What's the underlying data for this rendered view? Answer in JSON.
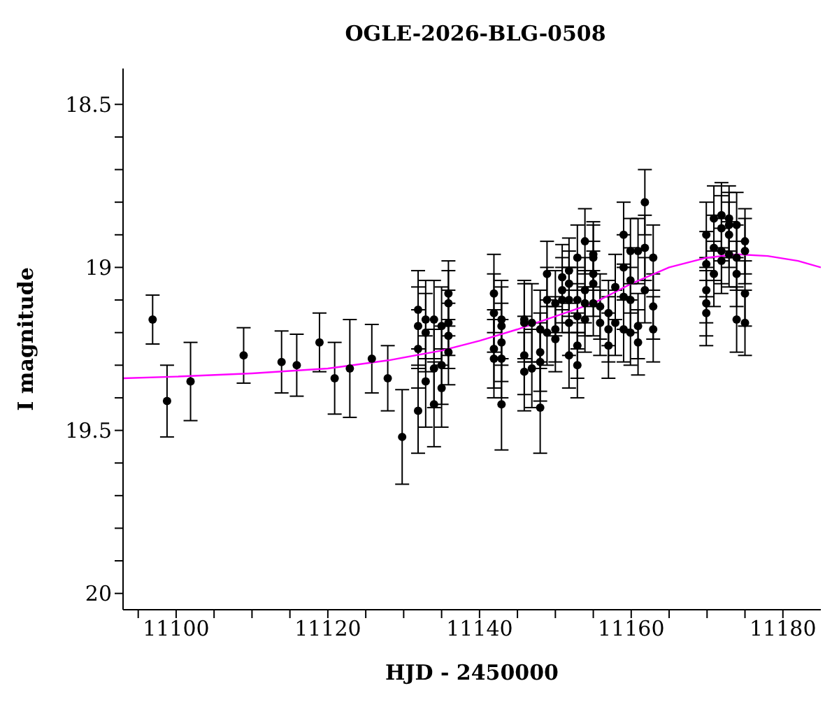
{
  "chart_data": {
    "type": "scatter",
    "title": "OGLE-2026-BLG-0508",
    "xlabel": "HJD - 2450000",
    "ylabel": "I magnitude",
    "xlim": [
      11093,
      11185
    ],
    "ylim": [
      20.05,
      18.39
    ],
    "xticks": [
      {
        "value": 11095,
        "label": null
      },
      11100,
      {
        "value": 11105,
        "label": null
      },
      {
        "value": 11110,
        "label": null
      },
      {
        "value": 11115,
        "label": null
      },
      11120,
      {
        "value": 11125,
        "label": null
      },
      {
        "value": 11130,
        "label": null
      },
      {
        "value": 11135,
        "label": null
      },
      11140,
      {
        "value": 11145,
        "label": null
      },
      {
        "value": 11150,
        "label": null
      },
      {
        "value": 11155,
        "label": null
      },
      11160,
      {
        "value": 11165,
        "label": null
      },
      {
        "value": 11170,
        "label": null
      },
      {
        "value": 11175,
        "label": null
      },
      11180
    ],
    "yticks": [
      18.5,
      {
        "value": 18.6,
        "label": null
      },
      {
        "value": 18.7,
        "label": null
      },
      {
        "value": 18.8,
        "label": null
      },
      {
        "value": 18.9,
        "label": null
      },
      19,
      {
        "value": 19.1,
        "label": null
      },
      {
        "value": 19.2,
        "label": null
      },
      {
        "value": 19.3,
        "label": null
      },
      {
        "value": 19.4,
        "label": null
      },
      19.5,
      {
        "value": 19.6,
        "label": null
      },
      {
        "value": 19.7,
        "label": null
      },
      {
        "value": 19.8,
        "label": null
      },
      {
        "value": 19.9,
        "label": null
      },
      20
    ],
    "grid": false,
    "series": [
      {
        "marker": "circle",
        "color": "#000000",
        "x": [
          11096.9,
          11098.8,
          11101.9,
          11108.9,
          11113.9,
          11115.9,
          11118.9,
          11120.9,
          11122.9,
          11125.8,
          11127.9,
          11129.8,
          11131.9,
          11131.9,
          11131.9,
          11131.9,
          11132.9,
          11132.9,
          11132.9,
          11134.0,
          11134.0,
          11134.0,
          11135.0,
          11135.0,
          11135.0,
          11135.9,
          11135.9,
          11135.9,
          11135.9,
          11135.9,
          11141.9,
          11141.9,
          11141.9,
          11141.9,
          11142.9,
          11142.9,
          11142.9,
          11142.9,
          11142.9,
          11145.9,
          11145.9,
          11145.9,
          11145.9,
          11146.9,
          11146.9,
          11148.0,
          11148.0,
          11148.0,
          11148.0,
          11148.9,
          11148.9,
          11148.9,
          11150.0,
          11150.0,
          11150.0,
          11150.9,
          11150.9,
          11150.9,
          11151.8,
          11151.8,
          11151.8,
          11151.8,
          11151.8,
          11152.9,
          11152.9,
          11152.9,
          11152.9,
          11152.9,
          11153.9,
          11153.9,
          11153.9,
          11153.9,
          11155.0,
          11155.0,
          11155.0,
          11155.0,
          11155.0,
          11155.9,
          11155.9,
          11157.0,
          11157.0,
          11157.0,
          11157.9,
          11157.9,
          11159.0,
          11159.0,
          11159.0,
          11159.0,
          11159.9,
          11159.9,
          11159.9,
          11159.9,
          11160.9,
          11160.9,
          11160.9,
          11161.8,
          11161.8,
          11161.8,
          11162.9,
          11162.9,
          11162.9,
          11169.9,
          11169.9,
          11169.9,
          11169.9,
          11169.9,
          11170.9,
          11170.9,
          11170.9,
          11171.9,
          11171.9,
          11171.9,
          11171.9,
          11172.9,
          11172.9,
          11172.9,
          11172.9,
          11173.9,
          11173.9,
          11173.9,
          11173.9,
          11175.0,
          11175.0,
          11175.0,
          11175.0
        ],
        "values": [
          19.16,
          19.41,
          19.35,
          19.27,
          19.29,
          19.3,
          19.23,
          19.34,
          19.31,
          19.28,
          19.34,
          19.52,
          19.13,
          19.18,
          19.25,
          19.44,
          19.16,
          19.2,
          19.35,
          19.16,
          19.31,
          19.42,
          19.18,
          19.3,
          19.37,
          19.08,
          19.11,
          19.17,
          19.21,
          19.26,
          19.08,
          19.14,
          19.25,
          19.28,
          19.16,
          19.18,
          19.23,
          19.28,
          19.42,
          19.16,
          19.17,
          19.27,
          19.32,
          19.17,
          19.31,
          19.19,
          19.26,
          19.29,
          19.43,
          19.02,
          19.1,
          19.2,
          19.11,
          19.19,
          19.22,
          19.03,
          19.07,
          19.1,
          19.01,
          19.05,
          19.1,
          19.17,
          19.27,
          18.97,
          19.1,
          19.15,
          19.24,
          19.3,
          18.92,
          19.07,
          19.11,
          19.16,
          18.96,
          18.97,
          19.02,
          19.05,
          19.11,
          19.12,
          19.17,
          19.14,
          19.19,
          19.24,
          19.06,
          19.17,
          18.9,
          19,
          19.09,
          19.19,
          18.95,
          19.04,
          19.1,
          19.2,
          18.95,
          19.18,
          19.23,
          18.8,
          18.94,
          19.07,
          18.97,
          19.12,
          19.19,
          18.9,
          18.99,
          19.07,
          19.11,
          19.14,
          18.85,
          18.94,
          19.02,
          18.84,
          18.88,
          18.95,
          18.98,
          18.85,
          18.87,
          18.9,
          18.96,
          18.87,
          18.97,
          19.02,
          19.16,
          18.92,
          18.95,
          19.08,
          19.17
        ],
        "errors": [
          0.075,
          0.11,
          0.12,
          0.085,
          0.095,
          0.095,
          0.09,
          0.11,
          0.15,
          0.105,
          0.1,
          0.145,
          0.12,
          0.12,
          0.12,
          0.13,
          0.12,
          0.12,
          0.14,
          0.12,
          0.12,
          0.13,
          0.12,
          0.12,
          0.12,
          0.1,
          0.1,
          0.1,
          0.1,
          0.1,
          0.12,
          0.12,
          0.12,
          0.12,
          0.12,
          0.12,
          0.12,
          0.12,
          0.14,
          0.12,
          0.12,
          0.12,
          0.12,
          0.12,
          0.12,
          0.12,
          0.12,
          0.12,
          0.14,
          0.1,
          0.1,
          0.1,
          0.1,
          0.1,
          0.1,
          0.1,
          0.1,
          0.1,
          0.1,
          0.1,
          0.1,
          0.1,
          0.1,
          0.1,
          0.1,
          0.1,
          0.1,
          0.1,
          0.1,
          0.1,
          0.1,
          0.1,
          0.1,
          0.1,
          0.1,
          0.1,
          0.1,
          0.1,
          0.1,
          0.1,
          0.1,
          0.1,
          0.1,
          0.1,
          0.1,
          0.1,
          0.1,
          0.1,
          0.1,
          0.1,
          0.1,
          0.1,
          0.1,
          0.1,
          0.1,
          0.1,
          0.1,
          0.1,
          0.1,
          0.1,
          0.1,
          0.1,
          0.1,
          0.1,
          0.1,
          0.1,
          0.1,
          0.1,
          0.1,
          0.1,
          0.1,
          0.1,
          0.1,
          0.1,
          0.1,
          0.1,
          0.1,
          0.1,
          0.1,
          0.1,
          0.1,
          0.1,
          0.1,
          0.1,
          0.1
        ]
      },
      {
        "type": "line",
        "color": "#ff00ff",
        "x": [
          11093,
          11100,
          11110,
          11120,
          11128,
          11135,
          11140,
          11145,
          11150,
          11155,
          11160,
          11165,
          11170,
          11174,
          11178,
          11182,
          11185
        ],
        "values": [
          19.34,
          19.335,
          19.325,
          19.31,
          19.285,
          19.255,
          19.225,
          19.19,
          19.15,
          19.11,
          19.05,
          19,
          18.97,
          18.96,
          18.965,
          18.98,
          19
        ]
      }
    ]
  }
}
